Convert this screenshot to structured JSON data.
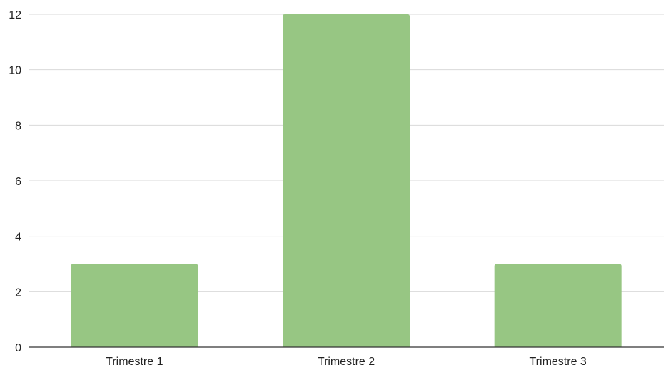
{
  "chart_data": {
    "type": "bar",
    "title": "",
    "xlabel": "",
    "ylabel": "",
    "categories": [
      "Trimestre 1",
      "Trimestre 2",
      "Trimestre 3"
    ],
    "values": [
      3,
      12,
      3
    ],
    "ylim": [
      0,
      12
    ],
    "yticks": [
      0,
      2,
      4,
      6,
      8,
      10,
      12
    ],
    "grid": true,
    "legend": "none",
    "colors": {
      "bar": "#97c683",
      "grid": "#d9d9d9",
      "axis": "#333333",
      "text": "#222222"
    }
  }
}
